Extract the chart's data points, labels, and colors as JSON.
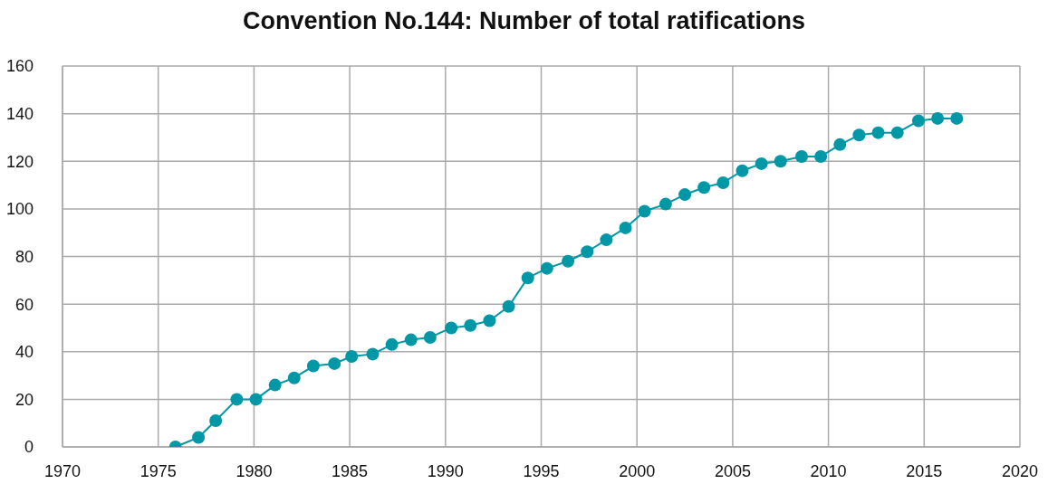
{
  "chart_data": {
    "type": "line",
    "title": "Convention No.144: Number of total ratifications",
    "x": [
      1975.9,
      1977.1,
      1978.0,
      1979.1,
      1980.1,
      1981.1,
      1982.1,
      1983.1,
      1984.2,
      1985.1,
      1986.2,
      1987.2,
      1988.2,
      1989.2,
      1990.3,
      1991.3,
      1992.3,
      1993.3,
      1994.3,
      1995.3,
      1996.4,
      1997.4,
      1998.4,
      1999.4,
      2000.4,
      2001.5,
      2002.5,
      2003.5,
      2004.5,
      2005.5,
      2006.5,
      2007.5,
      2008.6,
      2009.6,
      2010.6,
      2011.6,
      2012.6,
      2013.6,
      2014.7,
      2015.7,
      2016.7
    ],
    "series": [
      {
        "color": "#0097a7",
        "values": [
          0,
          4,
          11,
          20,
          20,
          26,
          29,
          34,
          35,
          38,
          39,
          43,
          45,
          46,
          50,
          51,
          53,
          59,
          71,
          75,
          78,
          82,
          87,
          92,
          99,
          102,
          106,
          109,
          111,
          116,
          119,
          120,
          122,
          122,
          127,
          131,
          132,
          132,
          137,
          138,
          138
        ]
      }
    ],
    "xlim": [
      1970,
      2020
    ],
    "xticks": [
      1970,
      1975,
      1980,
      1985,
      1990,
      1995,
      2000,
      2005,
      2010,
      2015,
      2020
    ],
    "ylim": [
      0,
      160
    ],
    "yticks": [
      0,
      20,
      40,
      60,
      80,
      100,
      120,
      140,
      160
    ],
    "grid": true,
    "marker": "circle",
    "line_style": "solid"
  }
}
